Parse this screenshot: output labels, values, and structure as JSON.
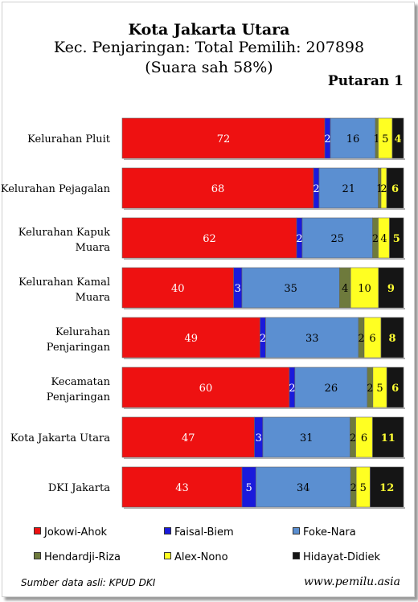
{
  "title": "Kota Jakarta Utara",
  "subtitle": "Kec. Penjaringan: Total Pemilih: 207898",
  "subtitle2": "(Suara sah 58%)",
  "round_label": "Putaran 1",
  "source_label": "Sumber data asli: KPUD DKI",
  "site_label": "www.pemilu.asia",
  "chart_data": {
    "type": "bar",
    "orientation": "horizontal",
    "stacked": true,
    "categories": [
      "Kelurahan Pluit",
      "Kelurahan Pejagalan",
      "Kelurahan Kapuk Muara",
      "Kelurahan Kamal Muara",
      "Kelurahan Penjaringan",
      "Kecamatan Penjaringan",
      "Kota Jakarta Utara",
      "DKI Jakarta"
    ],
    "series": [
      {
        "name": "Jokowi-Ahok",
        "color": "#ee1111",
        "label_color": "#ffffff",
        "values": [
          72,
          68,
          62,
          40,
          49,
          60,
          47,
          43
        ]
      },
      {
        "name": "Faisal-Biem",
        "color": "#1a1adb",
        "label_color": "#ffffff",
        "values": [
          2,
          2,
          2,
          3,
          2,
          2,
          3,
          5
        ]
      },
      {
        "name": "Foke-Nara",
        "color": "#5b8fd1",
        "label_color": "#000000",
        "values": [
          16,
          21,
          25,
          35,
          33,
          26,
          31,
          34
        ]
      },
      {
        "name": "Hendardji-Riza",
        "color": "#6e7a3c",
        "label_color": "#000000",
        "values": [
          1,
          1,
          2,
          4,
          2,
          2,
          2,
          2
        ]
      },
      {
        "name": "Alex-Nono",
        "color": "#ffff22",
        "label_color": "#000000",
        "values": [
          5,
          2,
          4,
          10,
          6,
          5,
          6,
          5
        ]
      },
      {
        "name": "Hidayat-Didiek",
        "color": "#151515",
        "label_color": "#ffff33",
        "values": [
          4,
          6,
          5,
          9,
          8,
          6,
          11,
          12
        ]
      }
    ],
    "xlim": [
      0,
      100
    ],
    "legend_position": "bottom"
  }
}
